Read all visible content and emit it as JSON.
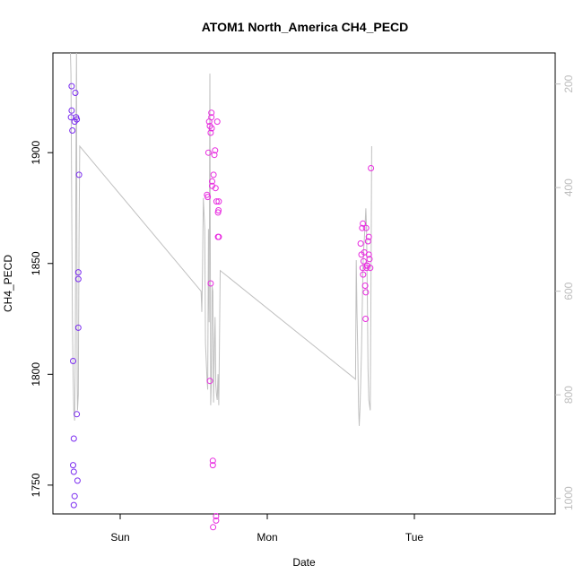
{
  "chart_data": {
    "type": "scatter",
    "title": "ATOM1 North_America CH4_PECD",
    "xlabel": "Date",
    "ylabel": "CH4_PECD",
    "x_ticks": [
      "Sun",
      "Mon",
      "Tue"
    ],
    "ylim": [
      1737,
      1945
    ],
    "y_ticks": [
      1750,
      1800,
      1850,
      1900
    ],
    "y2_ticks": [
      200,
      400,
      600,
      800,
      1000
    ],
    "y2lim": [
      1030,
      140
    ],
    "y2_reversed": true,
    "grid": false,
    "colors": {
      "line": "#c0c0c0",
      "points_low_altitude": "#7b2cf0",
      "points_high_altitude": "#e82ce0",
      "right_axis": "#bdbdbd"
    },
    "series": [
      {
        "kind": "points",
        "points": [
          [
            -0.33,
            1930
          ],
          [
            -0.335,
            1916
          ],
          [
            -0.33,
            1919
          ],
          [
            -0.325,
            1910
          ],
          [
            -0.32,
            1806
          ],
          [
            -0.315,
            1771
          ],
          [
            -0.32,
            1759
          ],
          [
            -0.315,
            1756
          ],
          [
            -0.31,
            1745
          ],
          [
            -0.315,
            1741
          ],
          [
            -0.31,
            1914
          ],
          [
            -0.305,
            1927
          ],
          [
            -0.3,
            1916
          ],
          [
            -0.295,
            1915
          ],
          [
            -0.29,
            1752
          ],
          [
            -0.295,
            1782
          ],
          [
            -0.285,
            1846
          ],
          [
            -0.285,
            1843
          ],
          [
            -0.285,
            1821
          ],
          [
            -0.28,
            1890
          ],
          [
            0.59,
            1881
          ],
          [
            0.595,
            1880
          ],
          [
            0.6,
            1900
          ],
          [
            0.605,
            1914
          ],
          [
            0.61,
            1912
          ],
          [
            0.615,
            1841
          ],
          [
            0.61,
            1797
          ],
          [
            0.615,
            1909
          ],
          [
            0.62,
            1918
          ],
          [
            0.62,
            1916
          ],
          [
            0.622,
            1911
          ],
          [
            0.625,
            1887
          ],
          [
            0.625,
            1885
          ],
          [
            0.63,
            1761
          ],
          [
            0.63,
            1759
          ],
          [
            0.632,
            1731
          ],
          [
            0.635,
            1890
          ],
          [
            0.64,
            1899
          ],
          [
            0.645,
            1901
          ],
          [
            0.648,
            1884
          ],
          [
            0.655,
            1878
          ],
          [
            0.652,
            1736
          ],
          [
            0.652,
            1734
          ],
          [
            0.66,
            1914
          ],
          [
            0.665,
            1873
          ],
          [
            0.668,
            1874
          ],
          [
            0.67,
            1878
          ],
          [
            0.665,
            1862
          ],
          [
            0.67,
            1862
          ],
          [
            1.635,
            1859
          ],
          [
            1.64,
            1854
          ],
          [
            1.645,
            1866
          ],
          [
            1.65,
            1868
          ],
          [
            1.648,
            1848
          ],
          [
            1.652,
            1845
          ],
          [
            1.655,
            1851
          ],
          [
            1.66,
            1855
          ],
          [
            1.665,
            1840
          ],
          [
            1.668,
            1825
          ],
          [
            1.67,
            1837
          ],
          [
            1.672,
            1866
          ],
          [
            1.675,
            1848
          ],
          [
            1.678,
            1849
          ],
          [
            1.68,
            1849
          ],
          [
            1.685,
            1860
          ],
          [
            1.69,
            1862
          ],
          [
            1.69,
            1854
          ],
          [
            1.695,
            1852
          ],
          [
            1.7,
            1848
          ],
          [
            1.705,
            1893
          ]
        ]
      },
      {
        "kind": "line",
        "axis": "right",
        "points": [
          [
            -0.34,
            120
          ],
          [
            -0.335,
            180
          ],
          [
            -0.33,
            420
          ],
          [
            -0.325,
            650
          ],
          [
            -0.32,
            760
          ],
          [
            -0.315,
            830
          ],
          [
            -0.31,
            850
          ],
          [
            -0.305,
            700
          ],
          [
            -0.3,
            300
          ],
          [
            -0.297,
            130
          ],
          [
            -0.295,
            400
          ],
          [
            -0.292,
            780
          ],
          [
            -0.29,
            830
          ],
          [
            -0.285,
            800
          ],
          [
            -0.28,
            500
          ],
          [
            -0.275,
            320
          ],
          [
            0.55,
            600
          ],
          [
            0.555,
            640
          ],
          [
            0.56,
            560
          ],
          [
            0.565,
            420
          ],
          [
            0.575,
            480
          ],
          [
            0.58,
            700
          ],
          [
            0.59,
            770
          ],
          [
            0.595,
            790
          ],
          [
            0.6,
            480
          ],
          [
            0.605,
            660
          ],
          [
            0.61,
            180
          ],
          [
            0.615,
            820
          ],
          [
            0.62,
            770
          ],
          [
            0.625,
            590
          ],
          [
            0.63,
            600
          ],
          [
            0.635,
            815
          ],
          [
            0.64,
            705
          ],
          [
            0.645,
            650
          ],
          [
            0.65,
            780
          ],
          [
            0.655,
            800
          ],
          [
            0.66,
            810
          ],
          [
            0.665,
            760
          ],
          [
            0.67,
            820
          ],
          [
            0.672,
            780
          ],
          [
            0.68,
            560
          ],
          [
            1.6,
            770
          ],
          [
            1.605,
            540
          ],
          [
            1.61,
            640
          ],
          [
            1.615,
            720
          ],
          [
            1.62,
            820
          ],
          [
            1.625,
            860
          ],
          [
            1.63,
            830
          ],
          [
            1.635,
            780
          ],
          [
            1.64,
            720
          ],
          [
            1.645,
            640
          ],
          [
            1.65,
            560
          ],
          [
            1.655,
            520
          ],
          [
            1.66,
            500
          ],
          [
            1.665,
            470
          ],
          [
            1.67,
            440
          ],
          [
            1.675,
            480
          ],
          [
            1.68,
            600
          ],
          [
            1.685,
            750
          ],
          [
            1.69,
            810
          ],
          [
            1.695,
            820
          ],
          [
            1.7,
            830
          ],
          [
            1.705,
            600
          ],
          [
            1.71,
            320
          ]
        ]
      }
    ]
  }
}
